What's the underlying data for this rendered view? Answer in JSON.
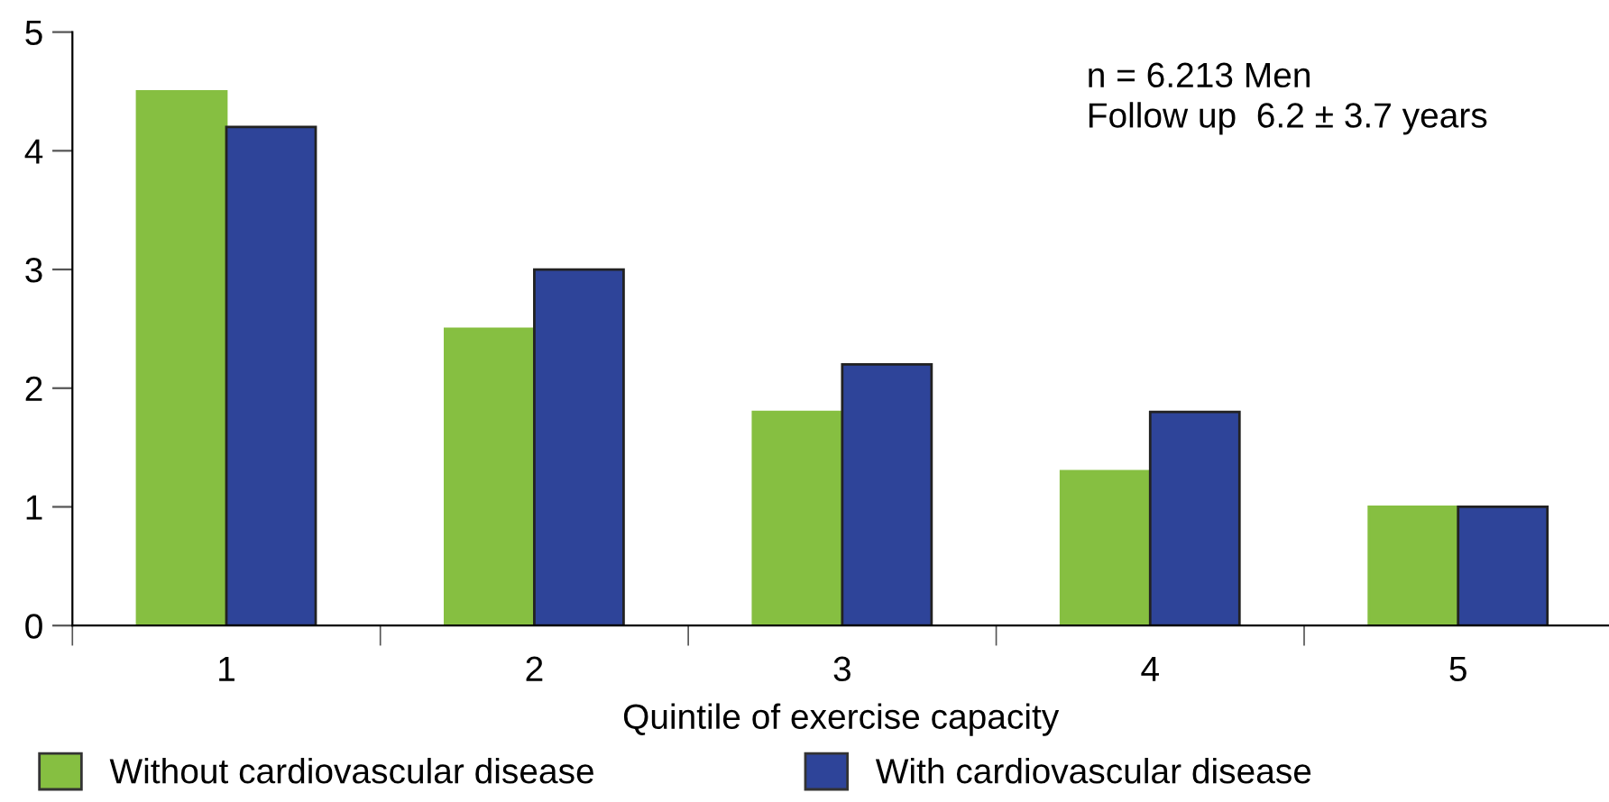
{
  "chart_data": {
    "type": "bar",
    "xlabel": "Quintile of exercise capacity",
    "categories": [
      "1",
      "2",
      "3",
      "4",
      "5"
    ],
    "series": [
      {
        "name": "Without cardiovascular disease",
        "color": "#86bf41",
        "values": [
          4.5,
          2.5,
          1.8,
          1.3,
          1.0
        ]
      },
      {
        "name": "With cardiovascular disease",
        "color": "#2e4499",
        "values": [
          4.2,
          3.0,
          2.2,
          1.8,
          1.0
        ]
      }
    ],
    "ylim": [
      0,
      5
    ],
    "yticks": [
      0,
      1,
      2,
      3,
      4,
      5
    ],
    "grid": false,
    "legend": "bottom",
    "annotations": [
      "n = 6.213 Men\nFollow up  6.2 ± 3.7 years"
    ]
  }
}
